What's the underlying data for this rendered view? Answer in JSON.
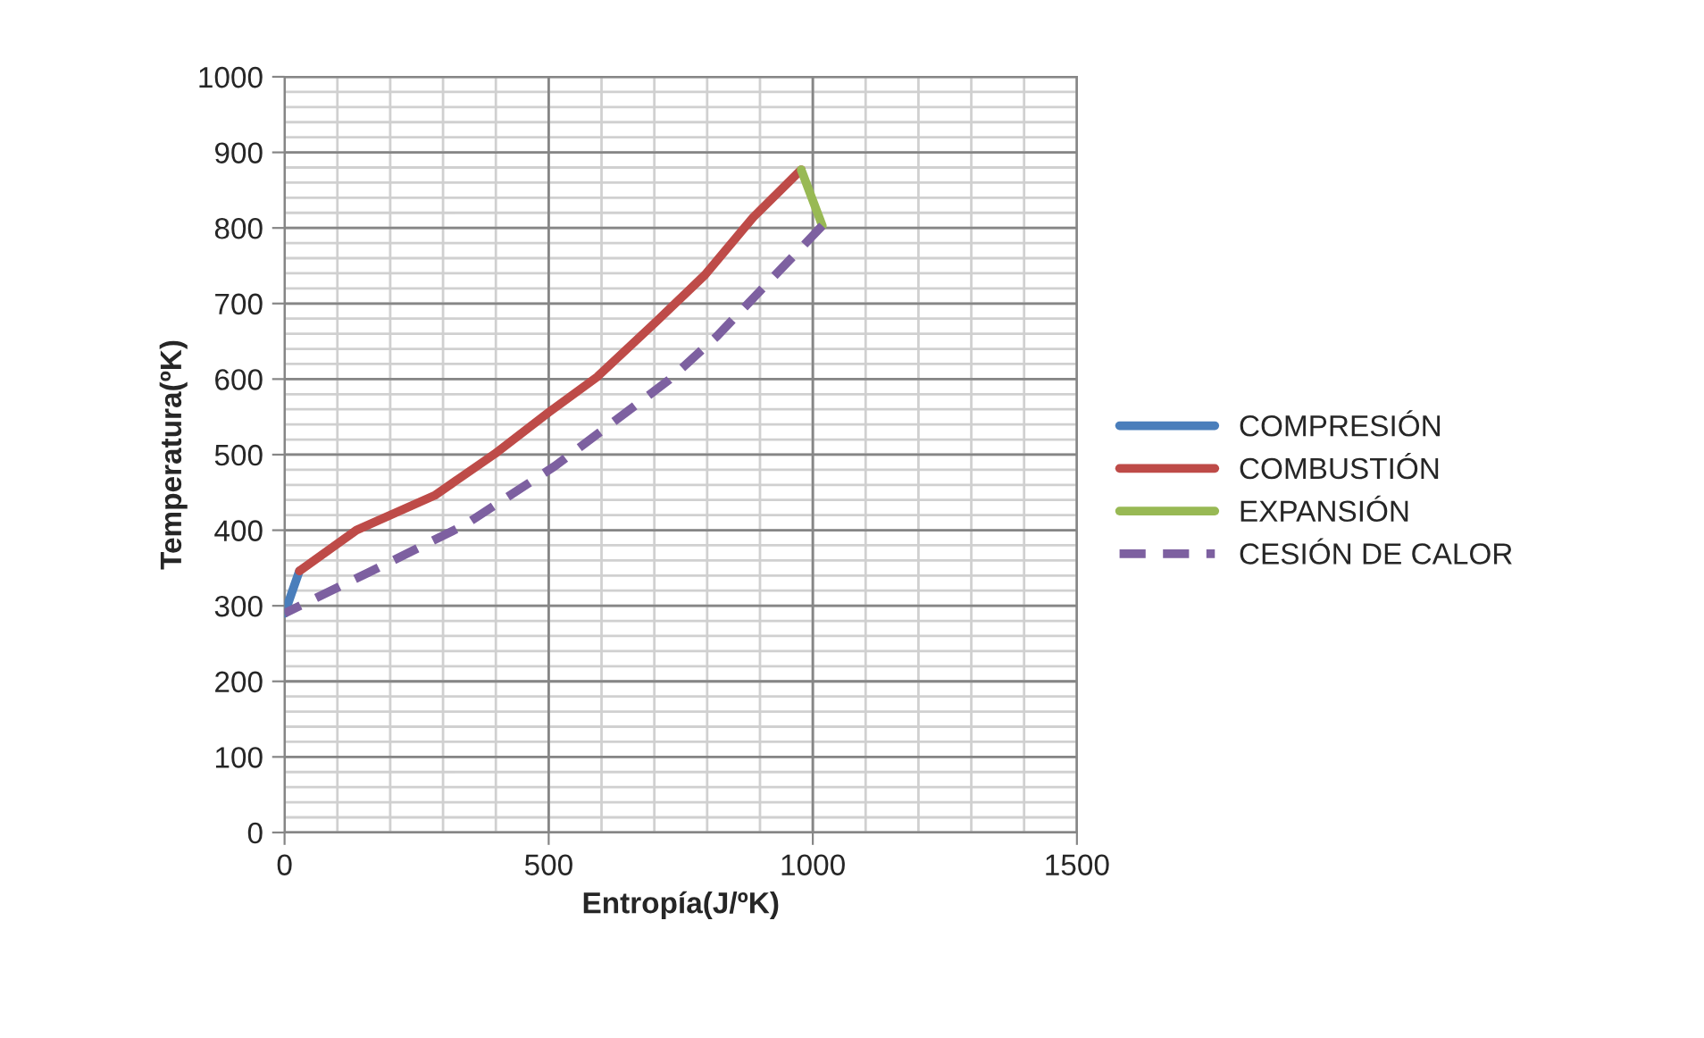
{
  "chart_data": {
    "type": "line",
    "xlabel": "Entropía(J/ºK)",
    "ylabel": "Temperatura(ºK)",
    "xlim": [
      0,
      1500
    ],
    "xticks": [
      0,
      500,
      1000,
      1500
    ],
    "ylim": [
      0,
      1000
    ],
    "yticks": [
      0,
      100,
      200,
      300,
      400,
      500,
      600,
      700,
      800,
      900,
      1000
    ],
    "grid": true,
    "legend": "right",
    "marker": "none",
    "series": [
      {
        "name": "COMPRESIÓN",
        "color": "#4a7ebb",
        "line_style": "solid",
        "x": [
          0,
          28
        ],
        "values": [
          290,
          346
        ]
      },
      {
        "name": "COMBUSTIÓN",
        "color": "#be4b48",
        "line_style": "solid",
        "x": [
          28,
          136,
          284,
          398,
          500,
          592,
          705,
          796,
          887,
          978
        ],
        "values": [
          346,
          400,
          446,
          501,
          556,
          603,
          677,
          738,
          814,
          877
        ]
      },
      {
        "name": "EXPANSIÓN",
        "color": "#98b954",
        "line_style": "solid",
        "x": [
          978,
          1018
        ],
        "values": [
          877,
          803
        ]
      },
      {
        "name": "CESIÓN DE CALOR",
        "color": "#7d60a0",
        "line_style": "dashed",
        "x": [
          1018,
          819,
          728,
          512,
          341,
          159,
          0
        ],
        "values": [
          803,
          657,
          599,
          485,
          407,
          344,
          290
        ]
      }
    ]
  }
}
